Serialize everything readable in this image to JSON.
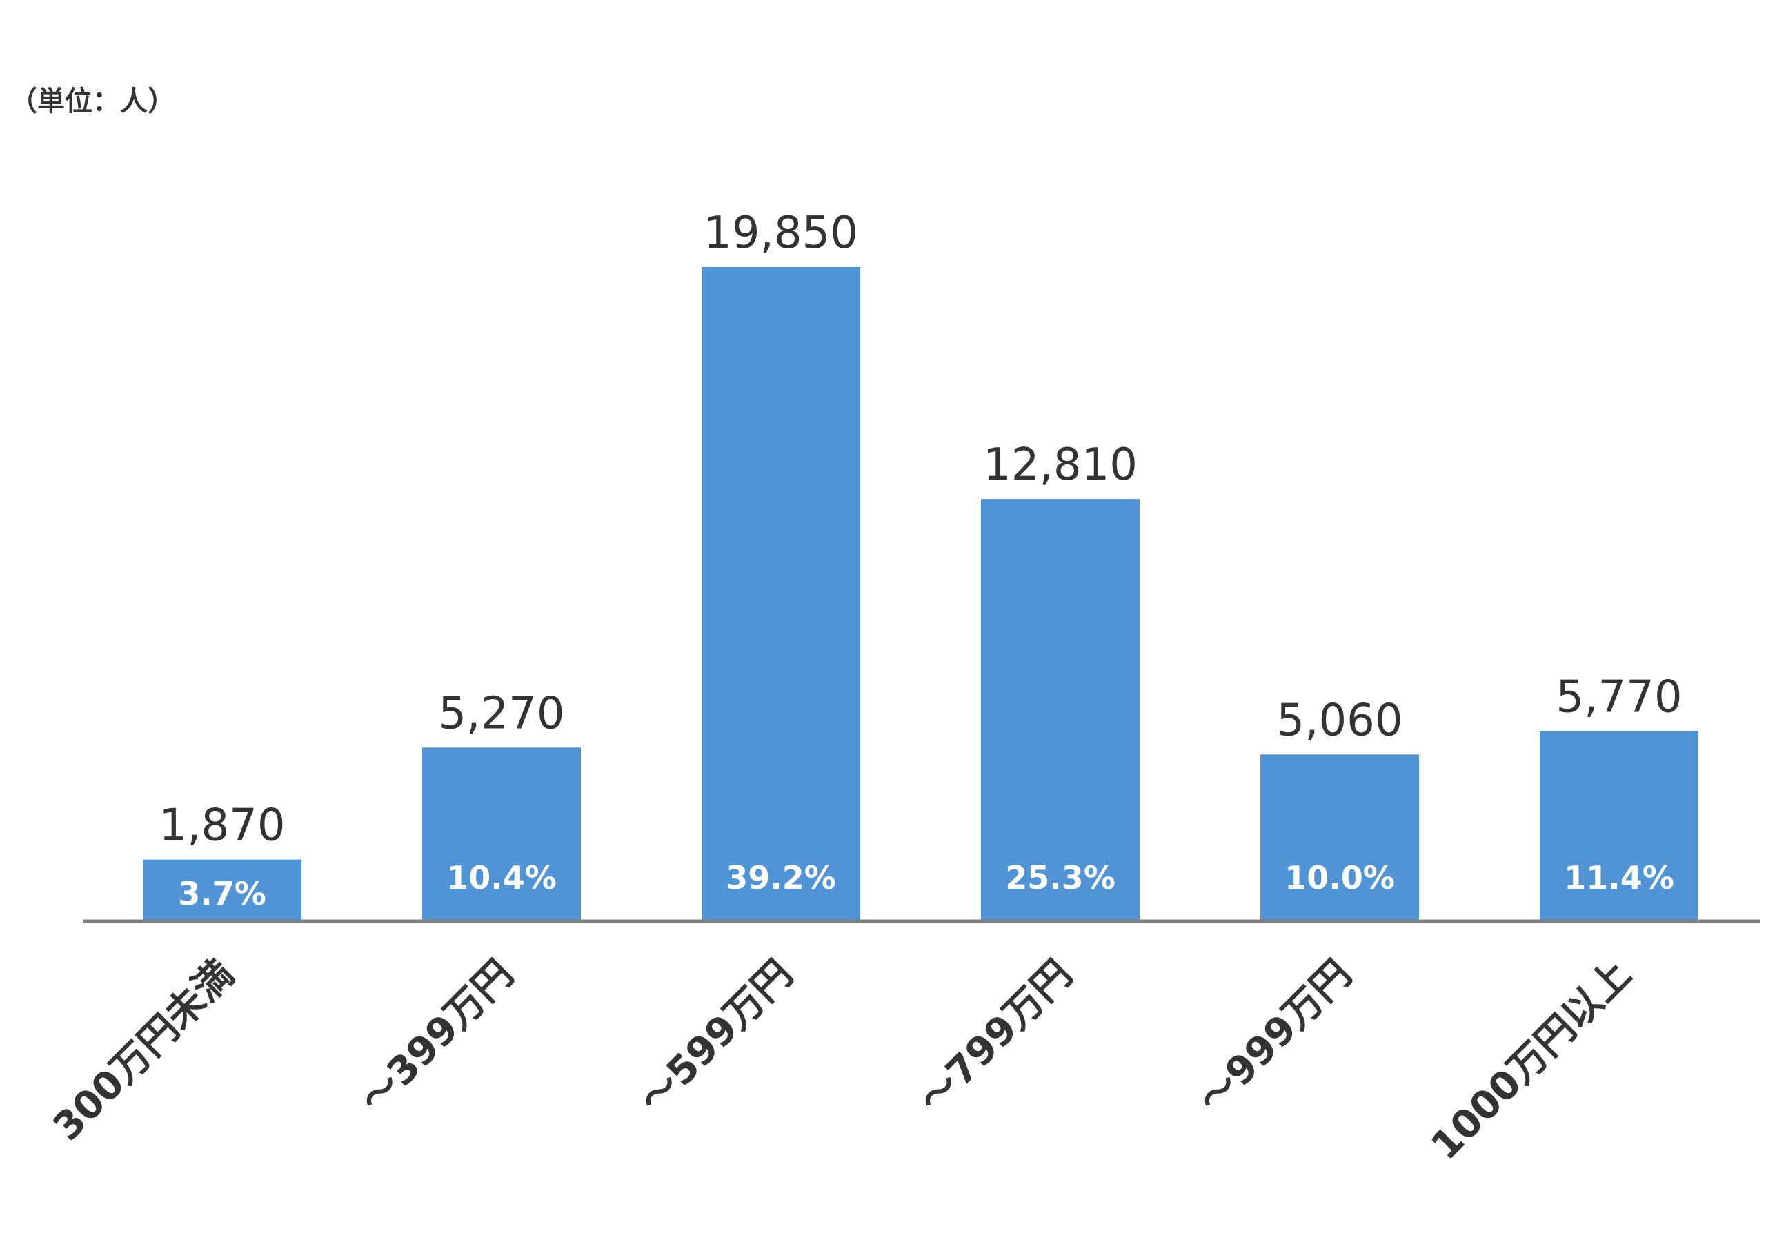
{
  "chart_data": {
    "type": "bar",
    "unit_label": "（単位：人）",
    "categories": [
      "300万円未満",
      "～399万円",
      "～599万円",
      "～799万円",
      "～999万円",
      "1000万円以上"
    ],
    "values": [
      1870,
      5270,
      19850,
      12810,
      5060,
      5770
    ],
    "value_labels": [
      "1,870",
      "5,270",
      "19,850",
      "12,810",
      "5,060",
      "5,770"
    ],
    "percent_labels": [
      "3.7%",
      "10.4%",
      "39.2%",
      "25.3%",
      "10.0%",
      "11.4%"
    ],
    "ylim": [
      0,
      19850
    ],
    "grid": false,
    "legend": "none",
    "colors": {
      "bar": "#5094D6",
      "axis": "#808080",
      "text": "#333333",
      "percent_text": "#ffffff"
    }
  }
}
